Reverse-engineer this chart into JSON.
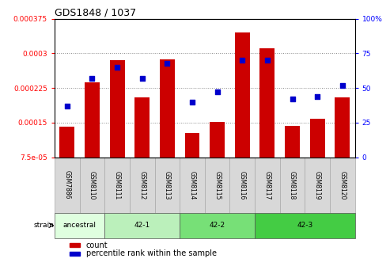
{
  "title": "GDS1848 / 1037",
  "samples": [
    "GSM7886",
    "GSM8110",
    "GSM8111",
    "GSM8112",
    "GSM8113",
    "GSM8114",
    "GSM8115",
    "GSM8116",
    "GSM8117",
    "GSM8118",
    "GSM8119",
    "GSM8120"
  ],
  "counts": [
    0.000142,
    0.000238,
    0.000285,
    0.000205,
    0.000287,
    0.000128,
    0.000152,
    0.000345,
    0.00031,
    0.000143,
    0.000158,
    0.000205
  ],
  "percentiles": [
    37,
    57,
    65,
    57,
    68,
    40,
    47,
    70,
    70,
    42,
    44,
    52
  ],
  "ylim_left": [
    7.5e-05,
    0.000375
  ],
  "ylim_right": [
    0,
    100
  ],
  "yticks_left": [
    7.5e-05,
    0.00015,
    0.000225,
    0.0003,
    0.000375
  ],
  "yticks_left_labels": [
    "7.5e-05",
    "0.00015",
    "0.000225",
    "0.0003",
    "0.000375"
  ],
  "yticks_right": [
    0,
    25,
    50,
    75,
    100
  ],
  "yticks_right_labels": [
    "0",
    "25",
    "50",
    "75",
    "100%"
  ],
  "bar_color": "#cc0000",
  "dot_color": "#0000cc",
  "strain_groups": [
    {
      "label": "ancestral",
      "start": 0,
      "end": 2,
      "color": "#dfffdf"
    },
    {
      "label": "42-1",
      "start": 2,
      "end": 5,
      "color": "#bbf0bb"
    },
    {
      "label": "42-2",
      "start": 5,
      "end": 8,
      "color": "#77e077"
    },
    {
      "label": "42-3",
      "start": 8,
      "end": 12,
      "color": "#44cc44"
    }
  ],
  "strain_label": "strain",
  "legend_count_label": "count",
  "legend_pct_label": "percentile rank within the sample",
  "grid_color": "#888888",
  "sample_box_color": "#d8d8d8"
}
